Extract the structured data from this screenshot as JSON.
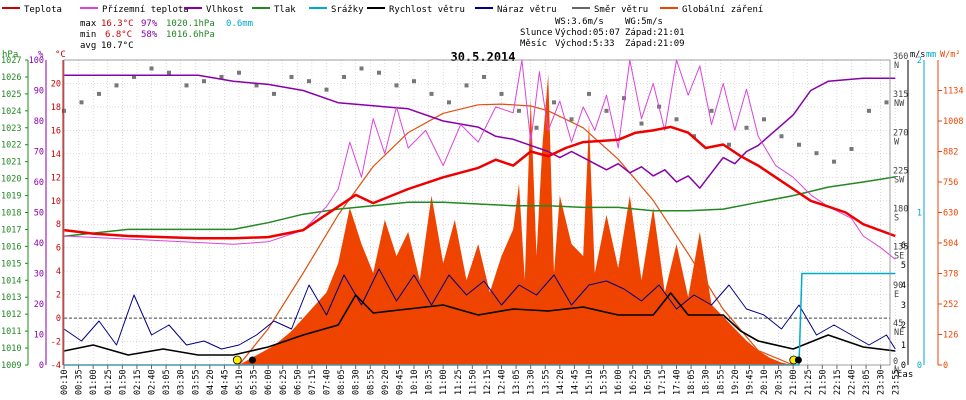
{
  "chart_data": {
    "type": "line",
    "title": "30.5.2014",
    "legend": [
      {
        "name": "Teplota",
        "color": "#cc0000"
      },
      {
        "name": "Přízemní teplota",
        "color": "#dd44dd"
      },
      {
        "name": "Vlhkost",
        "color": "#8800aa"
      },
      {
        "name": "Tlak",
        "color": "#228822"
      },
      {
        "name": "Srážky",
        "color": "#00aacc"
      },
      {
        "name": "Rychlost větru",
        "color": "#000000"
      },
      {
        "name": "Náraz větru",
        "color": "#000088"
      },
      {
        "name": "Směr větru",
        "color": "#666666"
      },
      {
        "name": "Globální záření",
        "color": "#ee4400"
      }
    ],
    "stats": {
      "max": {
        "label": "max",
        "temp": "16.3°C",
        "hum": "97%",
        "press": "1020.1hPa",
        "rain": "0.6mm"
      },
      "min": {
        "label": "min",
        "temp": "6.8°C",
        "hum": "58%",
        "press": "1016.6hPa"
      },
      "avg": {
        "label": "avg",
        "temp": "10.7°C"
      }
    },
    "wind_info": {
      "ws": "WS:3.6m/s",
      "wg": "WG:5m/s",
      "sun_label": "Slunce",
      "sun_rise": "Východ:05:07",
      "sun_set": "Západ:21:01",
      "moon_label": "Měsíc",
      "moon_rise": "Východ:5:33",
      "moon_set": "Západ:21:09"
    },
    "axes": {
      "hpa_unit": "hPa",
      "hum_unit": "%",
      "temp_unit": "°C",
      "ms_unit": "m/s",
      "mm_unit": "mm",
      "wm_unit": "W/m²",
      "time_unit": "čas",
      "hpa_range": [
        1009,
        1027
      ],
      "hpa_ticks": [
        "1027",
        "1026",
        "1025",
        "1024",
        "1023",
        "1022",
        "1021",
        "1020",
        "1019",
        "1018",
        "1017",
        "1016",
        "1015",
        "1014",
        "1013",
        "1012",
        "1011",
        "1010",
        "1009"
      ],
      "hum_range": [
        0,
        100
      ],
      "hum_ticks": [
        "100",
        "90",
        "80",
        "70",
        "60",
        "50",
        "40",
        "30",
        "20",
        "10",
        "0"
      ],
      "temp_range": [
        -4,
        22
      ],
      "temp_ticks": [
        "20",
        "18",
        "16",
        "14",
        "12",
        "10",
        "8",
        "6",
        "4",
        "2",
        "0",
        "-2",
        "-4"
      ],
      "dir_ticks": [
        {
          "deg": "360",
          "lbl": "N"
        },
        {
          "deg": "315",
          "lbl": "NW"
        },
        {
          "deg": "270",
          "lbl": "W"
        },
        {
          "deg": "225",
          "lbl": "SW"
        },
        {
          "deg": "180",
          "lbl": "S"
        },
        {
          "deg": "135",
          "lbl": "SE"
        },
        {
          "deg": "90",
          "lbl": "E"
        },
        {
          "deg": "45",
          "lbl": "NE"
        },
        {
          "deg": "0",
          "lbl": "N"
        }
      ],
      "ms_ticks": [
        "6",
        "5",
        "4",
        "3",
        "2",
        "1",
        "0"
      ],
      "mm_ticks": [
        "2",
        "1",
        "0"
      ],
      "wm_range": [
        0,
        1260
      ],
      "wm_ticks": [
        "1134",
        "1008",
        "882",
        "756",
        "630",
        "504",
        "378",
        "252",
        "126",
        "0"
      ],
      "x_range_min": [
        10,
        1426
      ],
      "time_labels": [
        "00:10",
        "00:35",
        "01:00",
        "01:25",
        "01:50",
        "02:15",
        "02:40",
        "03:05",
        "03:30",
        "03:55",
        "04:20",
        "04:45",
        "05:10",
        "05:35",
        "06:00",
        "06:25",
        "06:50",
        "07:15",
        "07:40",
        "08:05",
        "08:30",
        "08:55",
        "09:20",
        "09:45",
        "10:10",
        "10:35",
        "11:00",
        "11:25",
        "11:50",
        "12:15",
        "12:40",
        "13:05",
        "13:30",
        "13:55",
        "14:20",
        "14:45",
        "15:10",
        "15:35",
        "16:00",
        "16:25",
        "16:50",
        "17:15",
        "17:40",
        "18:05",
        "18:30",
        "18:55",
        "19:20",
        "19:45",
        "20:10",
        "20:35",
        "21:00",
        "21:25",
        "21:50",
        "22:15",
        "22:40",
        "23:05",
        "23:30",
        "23:55"
      ]
    },
    "temperature": {
      "name": "Teplota",
      "unit": "°C",
      "x": [
        "00:10",
        "01:00",
        "02:00",
        "03:00",
        "04:00",
        "05:00",
        "06:00",
        "07:00",
        "08:00",
        "08:30",
        "09:00",
        "10:00",
        "11:00",
        "12:00",
        "12:30",
        "13:00",
        "13:30",
        "14:00",
        "14:30",
        "15:00",
        "16:00",
        "16:30",
        "17:00",
        "17:30",
        "18:00",
        "18:30",
        "19:00",
        "19:30",
        "20:00",
        "20:30",
        "21:00",
        "21:30",
        "22:00",
        "22:30",
        "23:00",
        "23:55"
      ],
      "y": [
        7.5,
        7.2,
        7.0,
        6.9,
        6.8,
        6.8,
        6.9,
        7.5,
        9.5,
        10.5,
        9.8,
        11.0,
        12.0,
        12.8,
        13.5,
        13.0,
        14.2,
        13.8,
        14.5,
        15.0,
        15.2,
        15.8,
        16.0,
        16.3,
        15.8,
        14.5,
        14.8,
        13.8,
        13.0,
        12.0,
        11.0,
        10.0,
        9.5,
        9.0,
        8.0,
        7.0
      ]
    },
    "ground_temperature": {
      "name": "Přízemní teplota",
      "unit": "°C",
      "x": [
        "00:10",
        "05:00",
        "06:00",
        "07:00",
        "07:40",
        "08:00",
        "08:20",
        "08:40",
        "09:00",
        "09:20",
        "09:40",
        "10:00",
        "10:30",
        "11:00",
        "11:30",
        "12:00",
        "12:30",
        "13:00",
        "13:15",
        "13:30",
        "13:45",
        "14:00",
        "14:20",
        "14:40",
        "15:00",
        "15:20",
        "15:40",
        "16:00",
        "16:20",
        "16:40",
        "17:00",
        "17:20",
        "17:40",
        "18:00",
        "18:20",
        "18:40",
        "19:00",
        "19:20",
        "19:40",
        "20:00",
        "20:30",
        "21:00",
        "21:30",
        "22:00",
        "22:40",
        "23:00",
        "23:30",
        "23:55"
      ],
      "y": [
        7.0,
        6.3,
        6.5,
        7.5,
        9.5,
        11.0,
        15.0,
        12.0,
        17.0,
        14.0,
        18.0,
        14.5,
        16.0,
        13.0,
        16.5,
        15.0,
        18.0,
        17.5,
        22.0,
        15.0,
        21.0,
        16.0,
        18.5,
        15.0,
        18.0,
        16.0,
        19.0,
        14.5,
        22.0,
        17.0,
        20.0,
        16.0,
        22.0,
        19.0,
        21.5,
        16.5,
        20.0,
        16.0,
        19.5,
        15.5,
        13.0,
        12.0,
        10.5,
        9.5,
        8.5,
        7.0,
        6.0,
        5.0
      ]
    },
    "humidity": {
      "name": "Vlhkost",
      "unit": "%",
      "x": [
        "00:10",
        "04:00",
        "05:00",
        "06:00",
        "07:00",
        "08:00",
        "09:00",
        "10:00",
        "11:00",
        "12:00",
        "12:30",
        "13:00",
        "13:30",
        "14:00",
        "14:20",
        "14:40",
        "15:00",
        "15:20",
        "15:40",
        "16:00",
        "16:20",
        "16:40",
        "17:00",
        "17:20",
        "17:40",
        "18:00",
        "18:20",
        "18:40",
        "19:00",
        "19:20",
        "19:40",
        "20:00",
        "20:30",
        "21:00",
        "21:30",
        "22:00",
        "23:00",
        "23:55"
      ],
      "y": [
        95,
        95,
        93,
        92,
        90,
        86,
        85,
        84,
        80,
        78,
        75,
        74,
        72,
        70,
        68,
        70,
        68,
        66,
        64,
        66,
        63,
        65,
        62,
        64,
        60,
        62,
        58,
        63,
        68,
        66,
        70,
        72,
        77,
        82,
        90,
        93,
        94,
        94
      ]
    },
    "pressure": {
      "name": "Tlak",
      "unit": "hPa",
      "x": [
        "00:10",
        "02:00",
        "04:00",
        "05:00",
        "06:00",
        "07:00",
        "08:00",
        "09:00",
        "10:00",
        "11:00",
        "12:00",
        "13:00",
        "14:00",
        "15:00",
        "16:00",
        "17:00",
        "18:00",
        "19:00",
        "20:00",
        "21:00",
        "22:00",
        "23:00",
        "23:55"
      ],
      "y": [
        1016.6,
        1017.0,
        1017.0,
        1017.0,
        1017.4,
        1017.9,
        1018.2,
        1018.4,
        1018.6,
        1018.6,
        1018.5,
        1018.4,
        1018.4,
        1018.3,
        1018.3,
        1018.1,
        1018.1,
        1018.2,
        1018.6,
        1019.0,
        1019.5,
        1019.8,
        1020.1
      ]
    },
    "rain": {
      "name": "Srážky",
      "unit": "mm",
      "x": [
        "00:10",
        "21:10",
        "21:15",
        "23:55"
      ],
      "y": [
        0,
        0,
        0.6,
        0.6
      ]
    },
    "wind_speed": {
      "name": "Rychlost větru",
      "unit": "m/s",
      "x": [
        "00:10",
        "01:00",
        "02:00",
        "03:00",
        "04:00",
        "05:00",
        "06:00",
        "07:00",
        "08:00",
        "08:30",
        "09:00",
        "10:00",
        "11:00",
        "12:00",
        "13:00",
        "14:00",
        "15:00",
        "16:00",
        "17:00",
        "17:30",
        "18:00",
        "19:00",
        "19:30",
        "20:00",
        "21:00",
        "22:00",
        "23:00",
        "23:55"
      ],
      "y": [
        0.7,
        1.0,
        0.5,
        0.8,
        0.5,
        0.5,
        0.9,
        1.5,
        2.0,
        3.5,
        2.6,
        2.8,
        3.0,
        2.5,
        2.8,
        2.7,
        2.9,
        2.5,
        2.5,
        3.6,
        2.5,
        2.5,
        1.7,
        1.2,
        0.8,
        1.5,
        0.9,
        0.7
      ]
    },
    "wind_gust": {
      "name": "Náraz větru",
      "unit": "m/s",
      "x": [
        "00:10",
        "00:40",
        "01:10",
        "01:40",
        "02:10",
        "02:40",
        "03:10",
        "03:40",
        "04:10",
        "04:40",
        "05:10",
        "05:40",
        "06:10",
        "06:40",
        "07:10",
        "07:40",
        "08:10",
        "08:40",
        "09:10",
        "09:40",
        "10:10",
        "10:40",
        "11:10",
        "11:40",
        "12:10",
        "12:40",
        "13:10",
        "13:40",
        "14:10",
        "14:40",
        "15:10",
        "15:40",
        "16:10",
        "16:40",
        "17:10",
        "17:40",
        "18:10",
        "18:40",
        "19:10",
        "19:40",
        "20:10",
        "20:40",
        "21:10",
        "21:40",
        "22:10",
        "22:40",
        "23:10",
        "23:40",
        "23:55"
      ],
      "y": [
        1.8,
        1.2,
        2.2,
        1.0,
        3.5,
        1.5,
        2.0,
        1.0,
        1.2,
        0.8,
        1.0,
        1.5,
        2.2,
        1.8,
        4.0,
        2.5,
        4.5,
        3.0,
        4.8,
        3.2,
        4.5,
        3.0,
        4.5,
        3.5,
        4.2,
        3.0,
        4.0,
        3.5,
        4.5,
        3.0,
        4.0,
        4.2,
        3.8,
        3.2,
        4.0,
        2.8,
        3.5,
        3.0,
        4.0,
        2.8,
        2.5,
        1.8,
        3.0,
        1.5,
        2.0,
        1.5,
        1.0,
        1.5,
        0.8
      ]
    },
    "wind_direction": {
      "name": "Směr větru",
      "unit": "°",
      "x": [
        "00:10",
        "00:40",
        "01:10",
        "01:40",
        "02:10",
        "02:40",
        "03:10",
        "03:40",
        "04:10",
        "04:40",
        "05:10",
        "05:40",
        "06:10",
        "06:40",
        "07:10",
        "07:40",
        "08:10",
        "08:40",
        "09:10",
        "09:40",
        "10:10",
        "10:40",
        "11:10",
        "11:40",
        "12:10",
        "12:40",
        "13:10",
        "13:40",
        "14:10",
        "14:40",
        "15:10",
        "15:40",
        "16:10",
        "16:40",
        "17:10",
        "17:40",
        "18:10",
        "18:40",
        "19:10",
        "19:40",
        "20:10",
        "20:40",
        "21:10",
        "21:40",
        "22:10",
        "22:40",
        "23:10",
        "23:40"
      ],
      "y": [
        300,
        310,
        320,
        330,
        340,
        350,
        345,
        330,
        335,
        340,
        345,
        330,
        320,
        340,
        335,
        325,
        340,
        350,
        345,
        330,
        335,
        320,
        310,
        330,
        340,
        320,
        300,
        280,
        310,
        290,
        320,
        300,
        315,
        285,
        305,
        290,
        270,
        300,
        260,
        280,
        290,
        270,
        260,
        250,
        240,
        255,
        300,
        310
      ]
    },
    "solar": {
      "name": "Globální záření",
      "unit": "W/m²",
      "theoretical_x": [
        "05:10",
        "06:00",
        "07:00",
        "08:00",
        "09:00",
        "10:00",
        "11:00",
        "12:00",
        "12:40",
        "13:30",
        "14:00",
        "15:00",
        "16:00",
        "17:00",
        "18:00",
        "19:00",
        "20:00",
        "21:00"
      ],
      "theoretical_y": [
        0,
        150,
        380,
        620,
        820,
        960,
        1040,
        1075,
        1078,
        1070,
        1050,
        980,
        850,
        680,
        460,
        230,
        60,
        0
      ],
      "measured_x": [
        "05:10",
        "05:40",
        "06:10",
        "06:40",
        "07:10",
        "07:40",
        "08:00",
        "08:20",
        "08:40",
        "09:00",
        "09:20",
        "09:40",
        "10:00",
        "10:20",
        "10:40",
        "11:00",
        "11:20",
        "11:40",
        "12:00",
        "12:20",
        "12:40",
        "13:00",
        "13:10",
        "13:20",
        "13:30",
        "13:40",
        "13:50",
        "14:00",
        "14:10",
        "14:20",
        "14:40",
        "15:00",
        "15:10",
        "15:20",
        "15:40",
        "16:00",
        "16:20",
        "16:40",
        "17:00",
        "17:20",
        "17:40",
        "18:00",
        "18:20",
        "18:40",
        "19:00",
        "19:20",
        "19:40",
        "20:00",
        "20:20",
        "20:40",
        "21:00"
      ],
      "measured_y": [
        0,
        40,
        80,
        140,
        220,
        300,
        420,
        650,
        500,
        380,
        600,
        450,
        550,
        350,
        700,
        420,
        600,
        350,
        500,
        300,
        450,
        560,
        750,
        350,
        1100,
        450,
        900,
        1200,
        380,
        700,
        500,
        450,
        1000,
        380,
        620,
        400,
        700,
        350,
        650,
        300,
        500,
        280,
        550,
        250,
        200,
        150,
        100,
        60,
        30,
        10,
        0
      ]
    },
    "sun_rise": "05:07",
    "sun_set": "21:01",
    "moon_rise": "05:33",
    "moon_set": "21:09"
  }
}
